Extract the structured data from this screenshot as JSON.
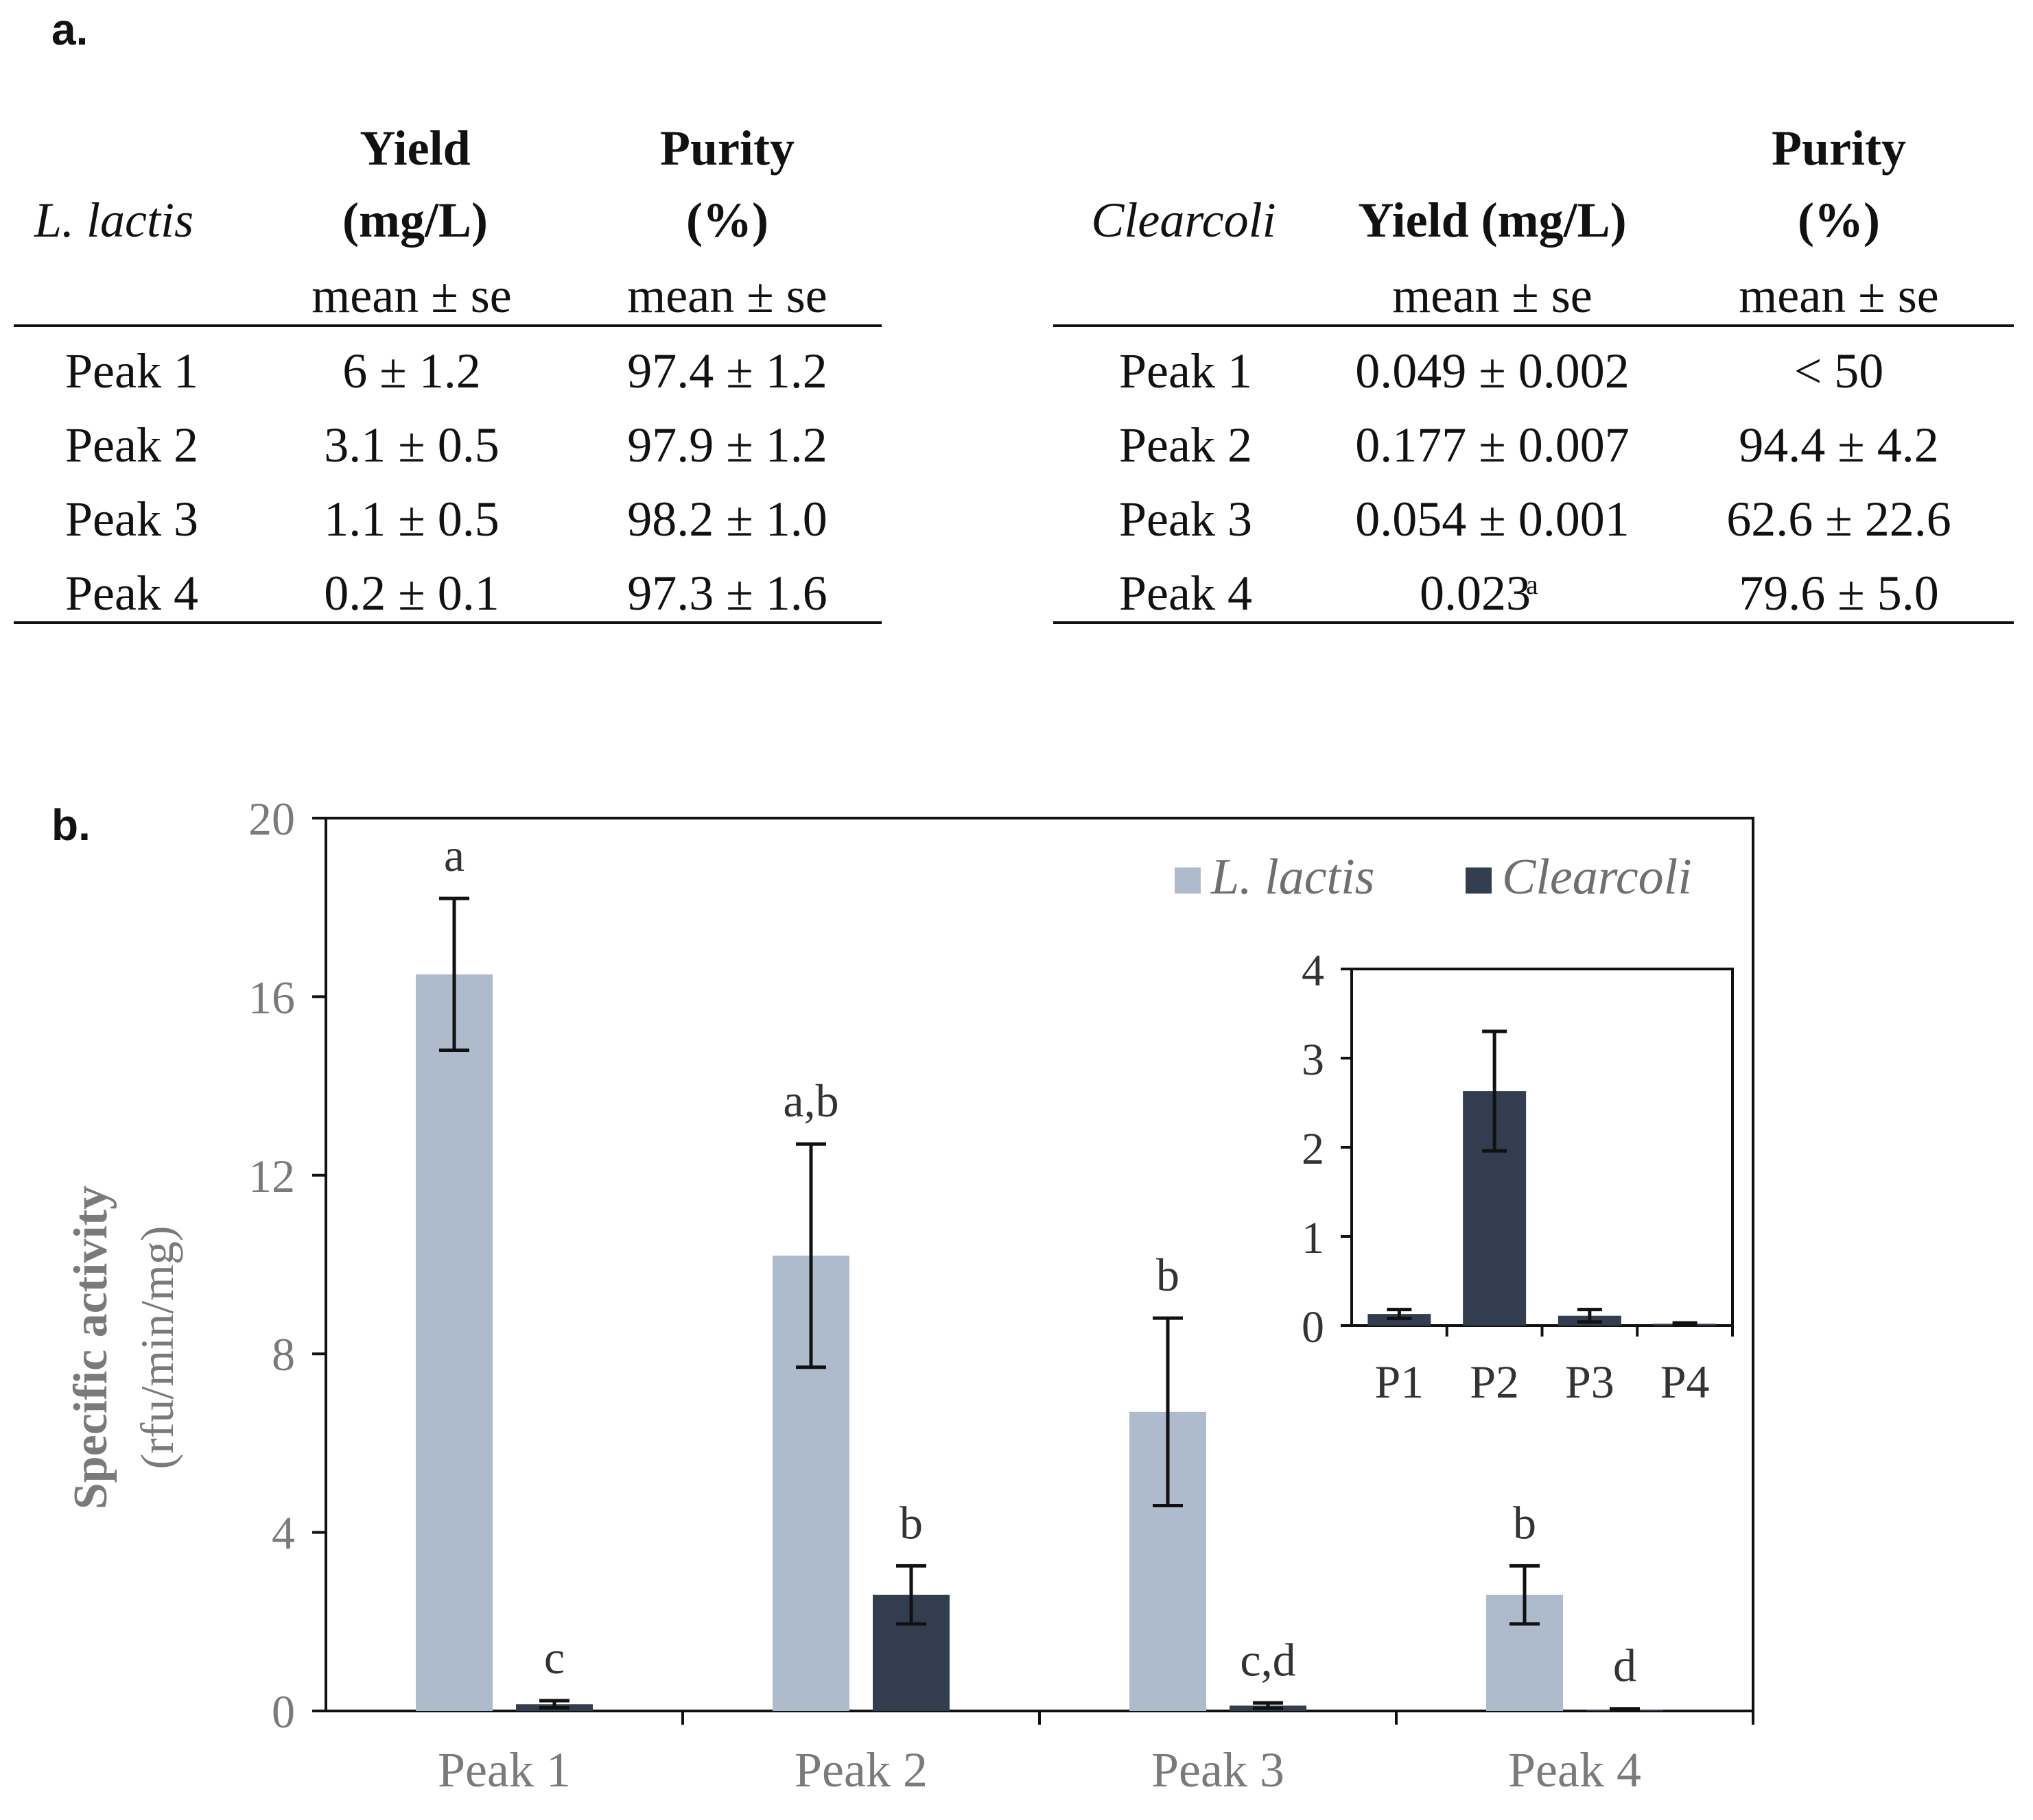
{
  "panel_a": {
    "label": "a.",
    "left_table": {
      "organism": "L. lactis",
      "headers": [
        {
          "lines": [
            "Yield",
            "(mg/L)"
          ],
          "sub": "mean ± se"
        },
        {
          "lines": [
            "Purity",
            "(%)"
          ],
          "sub": "mean ± se"
        }
      ],
      "rows": [
        {
          "peak": "Peak 1",
          "yield": "6 ± 1.2",
          "purity": "97.4 ± 1.2"
        },
        {
          "peak": "Peak 2",
          "yield": "3.1 ± 0.5",
          "purity": "97.9 ± 1.2"
        },
        {
          "peak": "Peak 3",
          "yield": "1.1 ± 0.5",
          "purity": "98.2 ± 1.0"
        },
        {
          "peak": "Peak 4",
          "yield": "0.2 ± 0.1",
          "purity": "97.3 ± 1.6"
        }
      ]
    },
    "right_table": {
      "organism": "Clearcoli",
      "headers": [
        {
          "lines": [
            "Yield (mg/L)"
          ],
          "sub": "mean ± se"
        },
        {
          "lines": [
            "Purity",
            "(%)"
          ],
          "sub": "mean ± se"
        }
      ],
      "rows": [
        {
          "peak": "Peak 1",
          "yield": "0.049 ± 0.002",
          "purity": "< 50"
        },
        {
          "peak": "Peak 2",
          "yield": "0.177 ± 0.007",
          "purity": "94.4 ± 4.2"
        },
        {
          "peak": "Peak 3",
          "yield": "0.054 ± 0.001",
          "purity": "62.6 ± 22.6"
        },
        {
          "peak": "Peak 4",
          "yield": "0.023",
          "yield_sup": "a",
          "purity": "79.6 ± 5.0"
        }
      ]
    }
  },
  "chart_data": [
    {
      "type": "bar",
      "panel_label": "b.",
      "ylabel": "Specific activity",
      "ylabel_units": "(rfu/min/mg)",
      "ylim": [
        0,
        20
      ],
      "yticks": [
        0,
        4,
        8,
        12,
        16,
        20
      ],
      "categories": [
        "Peak 1",
        "Peak 2",
        "Peak 3",
        "Peak 4"
      ],
      "legend_position": "top-right",
      "colors": {
        "L. lactis": "#aebbcd",
        "Clearcoli": "#323e4f"
      },
      "series": [
        {
          "name": "L. lactis",
          "values": [
            16.5,
            10.2,
            6.7,
            2.6
          ],
          "errors": [
            1.7,
            2.5,
            2.1,
            0.65
          ],
          "letters": [
            "a",
            "a,b",
            "b",
            "b"
          ]
        },
        {
          "name": "Clearcoli",
          "values": [
            0.15,
            2.6,
            0.12,
            0.03
          ],
          "errors": [
            0.08,
            0.65,
            0.06,
            0.02
          ],
          "letters": [
            "c",
            "b",
            "c,d",
            "d"
          ]
        }
      ]
    },
    {
      "type": "bar",
      "role": "inset",
      "ylim": [
        0,
        4
      ],
      "yticks": [
        0,
        1,
        2,
        3,
        4
      ],
      "categories": [
        "P1",
        "P2",
        "P3",
        "P4"
      ],
      "series": [
        {
          "name": "Clearcoli",
          "values": [
            0.13,
            2.63,
            0.11,
            0.02
          ],
          "errors": [
            0.05,
            0.67,
            0.07,
            0.01
          ]
        }
      ]
    }
  ]
}
